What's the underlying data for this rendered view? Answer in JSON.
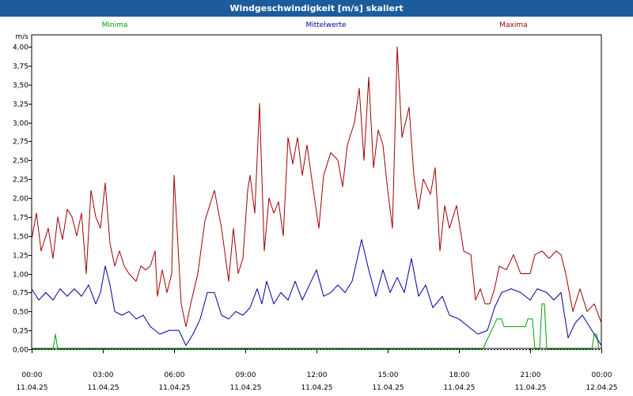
{
  "title": "Windgeschwindigkeit [m/s] skaliert",
  "chart_data": {
    "type": "line",
    "ylabel": "m/s",
    "ylim": [
      0,
      4
    ],
    "yticks": [
      "0,00",
      "0,25",
      "0,50",
      "0,75",
      "1,00",
      "1,25",
      "1,50",
      "1,75",
      "2,00",
      "2,25",
      "2,50",
      "2,75",
      "3,00",
      "3,25",
      "3,50",
      "3,75",
      "4,00"
    ],
    "xlim": [
      0,
      24
    ],
    "xticks": [
      {
        "time": "00:00",
        "date": "11.04.25"
      },
      {
        "time": "03:00",
        "date": "11.04.25"
      },
      {
        "time": "06:00",
        "date": "11.04.25"
      },
      {
        "time": "09:00",
        "date": "11.04.25"
      },
      {
        "time": "12:00",
        "date": "11.04.25"
      },
      {
        "time": "15:00",
        "date": "11.04.25"
      },
      {
        "time": "18:00",
        "date": "11.04.25"
      },
      {
        "time": "21:00",
        "date": "11.04.25"
      },
      {
        "time": "00:00",
        "date": "12.04.25"
      }
    ],
    "grid": true,
    "legend_position": "top",
    "series": [
      {
        "name": "Minima",
        "color": "#00a000",
        "points": [
          [
            0,
            0
          ],
          [
            0.9,
            0
          ],
          [
            1,
            0.2
          ],
          [
            1.1,
            0
          ],
          [
            19,
            0
          ],
          [
            19.3,
            0.2
          ],
          [
            19.6,
            0.4
          ],
          [
            19.8,
            0.4
          ],
          [
            19.9,
            0.3
          ],
          [
            20.8,
            0.3
          ],
          [
            20.9,
            0.4
          ],
          [
            21.1,
            0.4
          ],
          [
            21.2,
            0
          ],
          [
            21.4,
            0
          ],
          [
            21.5,
            0.6
          ],
          [
            21.6,
            0.6
          ],
          [
            21.7,
            0
          ],
          [
            23.6,
            0
          ],
          [
            23.7,
            0.2
          ],
          [
            23.8,
            0.2
          ],
          [
            23.9,
            0
          ]
        ]
      },
      {
        "name": "Mittelwerte",
        "color": "#0000a0",
        "points": [
          [
            0,
            0.8
          ],
          [
            0.3,
            0.65
          ],
          [
            0.6,
            0.75
          ],
          [
            0.9,
            0.65
          ],
          [
            1.2,
            0.8
          ],
          [
            1.5,
            0.7
          ],
          [
            1.8,
            0.8
          ],
          [
            2.1,
            0.7
          ],
          [
            2.4,
            0.85
          ],
          [
            2.7,
            0.6
          ],
          [
            2.9,
            0.75
          ],
          [
            3.1,
            1.1
          ],
          [
            3.3,
            0.85
          ],
          [
            3.5,
            0.5
          ],
          [
            3.8,
            0.45
          ],
          [
            4.1,
            0.5
          ],
          [
            4.4,
            0.4
          ],
          [
            4.7,
            0.45
          ],
          [
            5,
            0.3
          ],
          [
            5.4,
            0.2
          ],
          [
            5.8,
            0.25
          ],
          [
            6.2,
            0.25
          ],
          [
            6.5,
            0.05
          ],
          [
            6.8,
            0.2
          ],
          [
            7.1,
            0.4
          ],
          [
            7.4,
            0.75
          ],
          [
            7.7,
            0.75
          ],
          [
            8,
            0.45
          ],
          [
            8.3,
            0.4
          ],
          [
            8.6,
            0.5
          ],
          [
            8.9,
            0.45
          ],
          [
            9.2,
            0.55
          ],
          [
            9.5,
            0.8
          ],
          [
            9.7,
            0.6
          ],
          [
            9.9,
            0.9
          ],
          [
            10.2,
            0.6
          ],
          [
            10.5,
            0.75
          ],
          [
            10.8,
            0.65
          ],
          [
            11.1,
            0.9
          ],
          [
            11.4,
            0.65
          ],
          [
            11.7,
            0.85
          ],
          [
            12,
            1.05
          ],
          [
            12.3,
            0.7
          ],
          [
            12.6,
            0.75
          ],
          [
            12.9,
            0.85
          ],
          [
            13.2,
            0.75
          ],
          [
            13.5,
            0.9
          ],
          [
            13.9,
            1.45
          ],
          [
            14.2,
            1.05
          ],
          [
            14.5,
            0.7
          ],
          [
            14.8,
            1.05
          ],
          [
            15.1,
            0.75
          ],
          [
            15.4,
            0.95
          ],
          [
            15.7,
            0.75
          ],
          [
            16,
            1.2
          ],
          [
            16.3,
            0.7
          ],
          [
            16.6,
            0.85
          ],
          [
            16.9,
            0.55
          ],
          [
            17.3,
            0.7
          ],
          [
            17.6,
            0.45
          ],
          [
            18,
            0.4
          ],
          [
            18.4,
            0.3
          ],
          [
            18.8,
            0.2
          ],
          [
            19.2,
            0.25
          ],
          [
            19.5,
            0.55
          ],
          [
            19.8,
            0.75
          ],
          [
            20.2,
            0.8
          ],
          [
            20.6,
            0.75
          ],
          [
            21,
            0.65
          ],
          [
            21.3,
            0.8
          ],
          [
            21.7,
            0.75
          ],
          [
            22,
            0.65
          ],
          [
            22.3,
            0.75
          ],
          [
            22.6,
            0.15
          ],
          [
            22.9,
            0.35
          ],
          [
            23.2,
            0.45
          ],
          [
            23.5,
            0.3
          ],
          [
            23.8,
            0.15
          ],
          [
            24,
            0.05
          ]
        ]
      },
      {
        "name": "Maxima",
        "color": "#a00000",
        "points": [
          [
            0,
            1.45
          ],
          [
            0.2,
            1.8
          ],
          [
            0.4,
            1.3
          ],
          [
            0.7,
            1.6
          ],
          [
            0.9,
            1.2
          ],
          [
            1.1,
            1.75
          ],
          [
            1.3,
            1.45
          ],
          [
            1.5,
            1.85
          ],
          [
            1.7,
            1.75
          ],
          [
            1.9,
            1.5
          ],
          [
            2.1,
            1.8
          ],
          [
            2.3,
            1.0
          ],
          [
            2.5,
            2.1
          ],
          [
            2.7,
            1.75
          ],
          [
            2.9,
            1.6
          ],
          [
            3.1,
            2.2
          ],
          [
            3.3,
            1.4
          ],
          [
            3.5,
            1.1
          ],
          [
            3.7,
            1.3
          ],
          [
            3.9,
            1.1
          ],
          [
            4.1,
            1.0
          ],
          [
            4.4,
            0.9
          ],
          [
            4.6,
            1.1
          ],
          [
            4.8,
            1.05
          ],
          [
            5,
            1.1
          ],
          [
            5.2,
            1.3
          ],
          [
            5.3,
            0.7
          ],
          [
            5.5,
            1.05
          ],
          [
            5.7,
            0.75
          ],
          [
            5.9,
            1.0
          ],
          [
            6.0,
            2.3
          ],
          [
            6.3,
            0.6
          ],
          [
            6.5,
            0.3
          ],
          [
            6.7,
            0.6
          ],
          [
            7.0,
            1.0
          ],
          [
            7.3,
            1.7
          ],
          [
            7.7,
            2.1
          ],
          [
            8.0,
            1.6
          ],
          [
            8.3,
            0.9
          ],
          [
            8.5,
            1.6
          ],
          [
            8.7,
            1.0
          ],
          [
            8.9,
            1.2
          ],
          [
            9.1,
            2.1
          ],
          [
            9.2,
            2.3
          ],
          [
            9.4,
            1.8
          ],
          [
            9.6,
            3.25
          ],
          [
            9.8,
            1.3
          ],
          [
            10.0,
            2.0
          ],
          [
            10.2,
            1.8
          ],
          [
            10.4,
            1.95
          ],
          [
            10.6,
            1.5
          ],
          [
            10.8,
            2.8
          ],
          [
            11.0,
            2.45
          ],
          [
            11.2,
            2.8
          ],
          [
            11.4,
            2.3
          ],
          [
            11.6,
            2.7
          ],
          [
            11.8,
            2.25
          ],
          [
            12.1,
            1.6
          ],
          [
            12.3,
            2.3
          ],
          [
            12.6,
            2.6
          ],
          [
            12.9,
            2.5
          ],
          [
            13.1,
            2.15
          ],
          [
            13.3,
            2.7
          ],
          [
            13.6,
            3.0
          ],
          [
            13.8,
            3.45
          ],
          [
            14.0,
            2.5
          ],
          [
            14.2,
            3.6
          ],
          [
            14.4,
            2.4
          ],
          [
            14.6,
            2.9
          ],
          [
            14.8,
            2.7
          ],
          [
            15.0,
            2.1
          ],
          [
            15.2,
            1.6
          ],
          [
            15.4,
            4.0
          ],
          [
            15.6,
            2.8
          ],
          [
            15.9,
            3.2
          ],
          [
            16.1,
            2.3
          ],
          [
            16.3,
            1.85
          ],
          [
            16.5,
            2.25
          ],
          [
            16.8,
            2.05
          ],
          [
            17.0,
            2.4
          ],
          [
            17.2,
            1.3
          ],
          [
            17.4,
            1.9
          ],
          [
            17.6,
            1.6
          ],
          [
            17.9,
            1.9
          ],
          [
            18.2,
            1.3
          ],
          [
            18.5,
            1.25
          ],
          [
            18.7,
            0.65
          ],
          [
            18.9,
            0.8
          ],
          [
            19.1,
            0.6
          ],
          [
            19.3,
            0.6
          ],
          [
            19.5,
            0.8
          ],
          [
            19.7,
            1.1
          ],
          [
            20.0,
            1.05
          ],
          [
            20.3,
            1.25
          ],
          [
            20.6,
            1.0
          ],
          [
            21.0,
            1.0
          ],
          [
            21.2,
            1.25
          ],
          [
            21.5,
            1.3
          ],
          [
            21.8,
            1.2
          ],
          [
            22.1,
            1.3
          ],
          [
            22.3,
            1.25
          ],
          [
            22.5,
            1.0
          ],
          [
            22.8,
            0.5
          ],
          [
            23.1,
            0.8
          ],
          [
            23.4,
            0.5
          ],
          [
            23.7,
            0.6
          ],
          [
            24,
            0.35
          ]
        ]
      }
    ]
  }
}
